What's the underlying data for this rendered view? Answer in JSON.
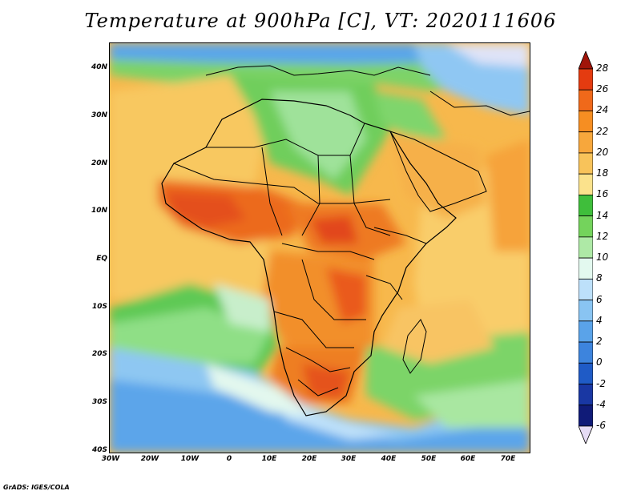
{
  "title": "Temperature at 900hPa [C], VT: 2020111606",
  "credit": "GrADS: IGES/COLA",
  "map": {
    "lat_labels": [
      "40N",
      "30N",
      "20N",
      "10N",
      "EQ",
      "10S",
      "20S",
      "30S",
      "40S"
    ],
    "lon_labels": [
      "30W",
      "20W",
      "10W",
      "0",
      "10E",
      "20E",
      "30E",
      "40E",
      "50E",
      "60E",
      "70E"
    ]
  },
  "colorbar": {
    "labels": [
      "28",
      "26",
      "24",
      "22",
      "20",
      "18",
      "16",
      "14",
      "12",
      "10",
      "8",
      "6",
      "4",
      "2",
      "0",
      "-2",
      "-4",
      "-6"
    ],
    "colors": [
      "#a0140a",
      "#e43b10",
      "#f0691a",
      "#f68e22",
      "#f7a73c",
      "#f8c35a",
      "#fbe28c",
      "#3fbe3b",
      "#74d35c",
      "#aee9a6",
      "#e3f9ef",
      "#bde0fa",
      "#89c4f2",
      "#5aa3e9",
      "#3d84dd",
      "#1f5bc6",
      "#1937a3",
      "#101b78",
      "#e6dcf5"
    ]
  }
}
